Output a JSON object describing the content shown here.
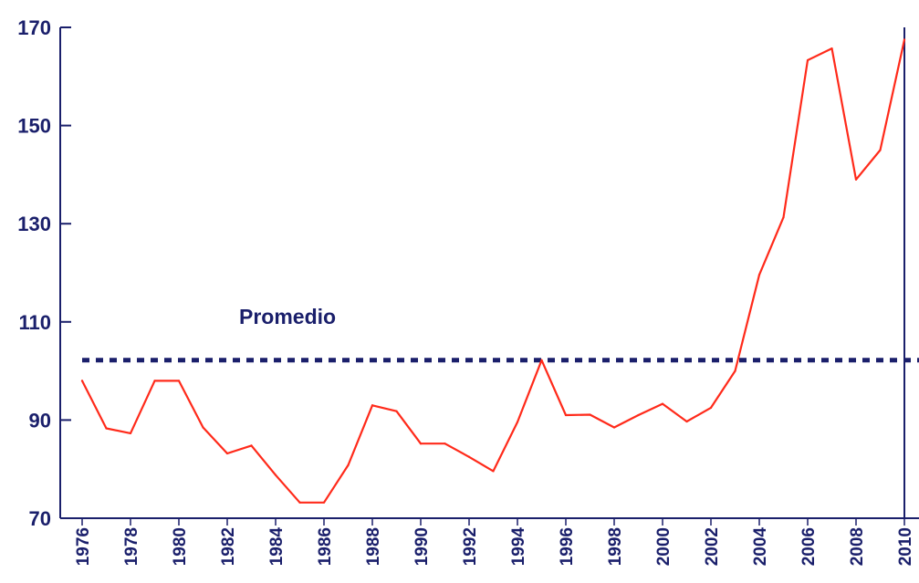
{
  "chart_data": {
    "type": "line",
    "title": "",
    "xlabel": "",
    "ylabel": "",
    "xlim": [
      1976,
      2010
    ],
    "ylim": [
      70,
      170
    ],
    "yticks": [
      70,
      90,
      110,
      130,
      150,
      170
    ],
    "xticks": [
      1976,
      1978,
      1980,
      1982,
      1984,
      1986,
      1988,
      1990,
      1992,
      1994,
      1996,
      1998,
      2000,
      2002,
      2004,
      2006,
      2008,
      2010
    ],
    "x_tick_labels": [
      "1976",
      "1978",
      "1980",
      "1982",
      "1984",
      "1986",
      "1988",
      "1990",
      "1992",
      "1994",
      "1996",
      "1998",
      "2000",
      "2002",
      "2004",
      "2006",
      "2008",
      "2010"
    ],
    "y_tick_labels": [
      "70",
      "90",
      "110",
      "130",
      "150",
      "170"
    ],
    "grid": false,
    "series": [
      {
        "color": "#ff2a1a",
        "x": [
          1976,
          1977,
          1978,
          1979,
          1980,
          1981,
          1982,
          1983,
          1984,
          1985,
          1986,
          1987,
          1988,
          1989,
          1990,
          1991,
          1992,
          1993,
          1994,
          1995,
          1996,
          1997,
          1998,
          1999,
          2000,
          2001,
          2002,
          2003,
          2004,
          2005,
          2006,
          2007,
          2008,
          2009,
          2010
        ],
        "values": [
          98,
          88.3,
          87.3,
          98,
          98,
          88.5,
          83.2,
          84.8,
          78.8,
          73.2,
          73.2,
          80.8,
          93,
          91.8,
          85.2,
          85.2,
          82.5,
          79.6,
          89.6,
          102.2,
          91,
          91.1,
          88.5,
          91,
          93.3,
          89.7,
          92.5,
          100,
          119.6,
          131.3,
          163.3,
          165.7,
          139,
          145,
          167.5
        ]
      }
    ],
    "reference_lines": [
      {
        "label": "Promedio",
        "y": 102.2,
        "style": "dotted",
        "color": "#1a1f6b"
      }
    ],
    "vertical_lines": [
      {
        "x": 2010,
        "color": "#1a1f6b"
      }
    ],
    "annotations": [
      {
        "text": "Promedio"
      }
    ]
  }
}
